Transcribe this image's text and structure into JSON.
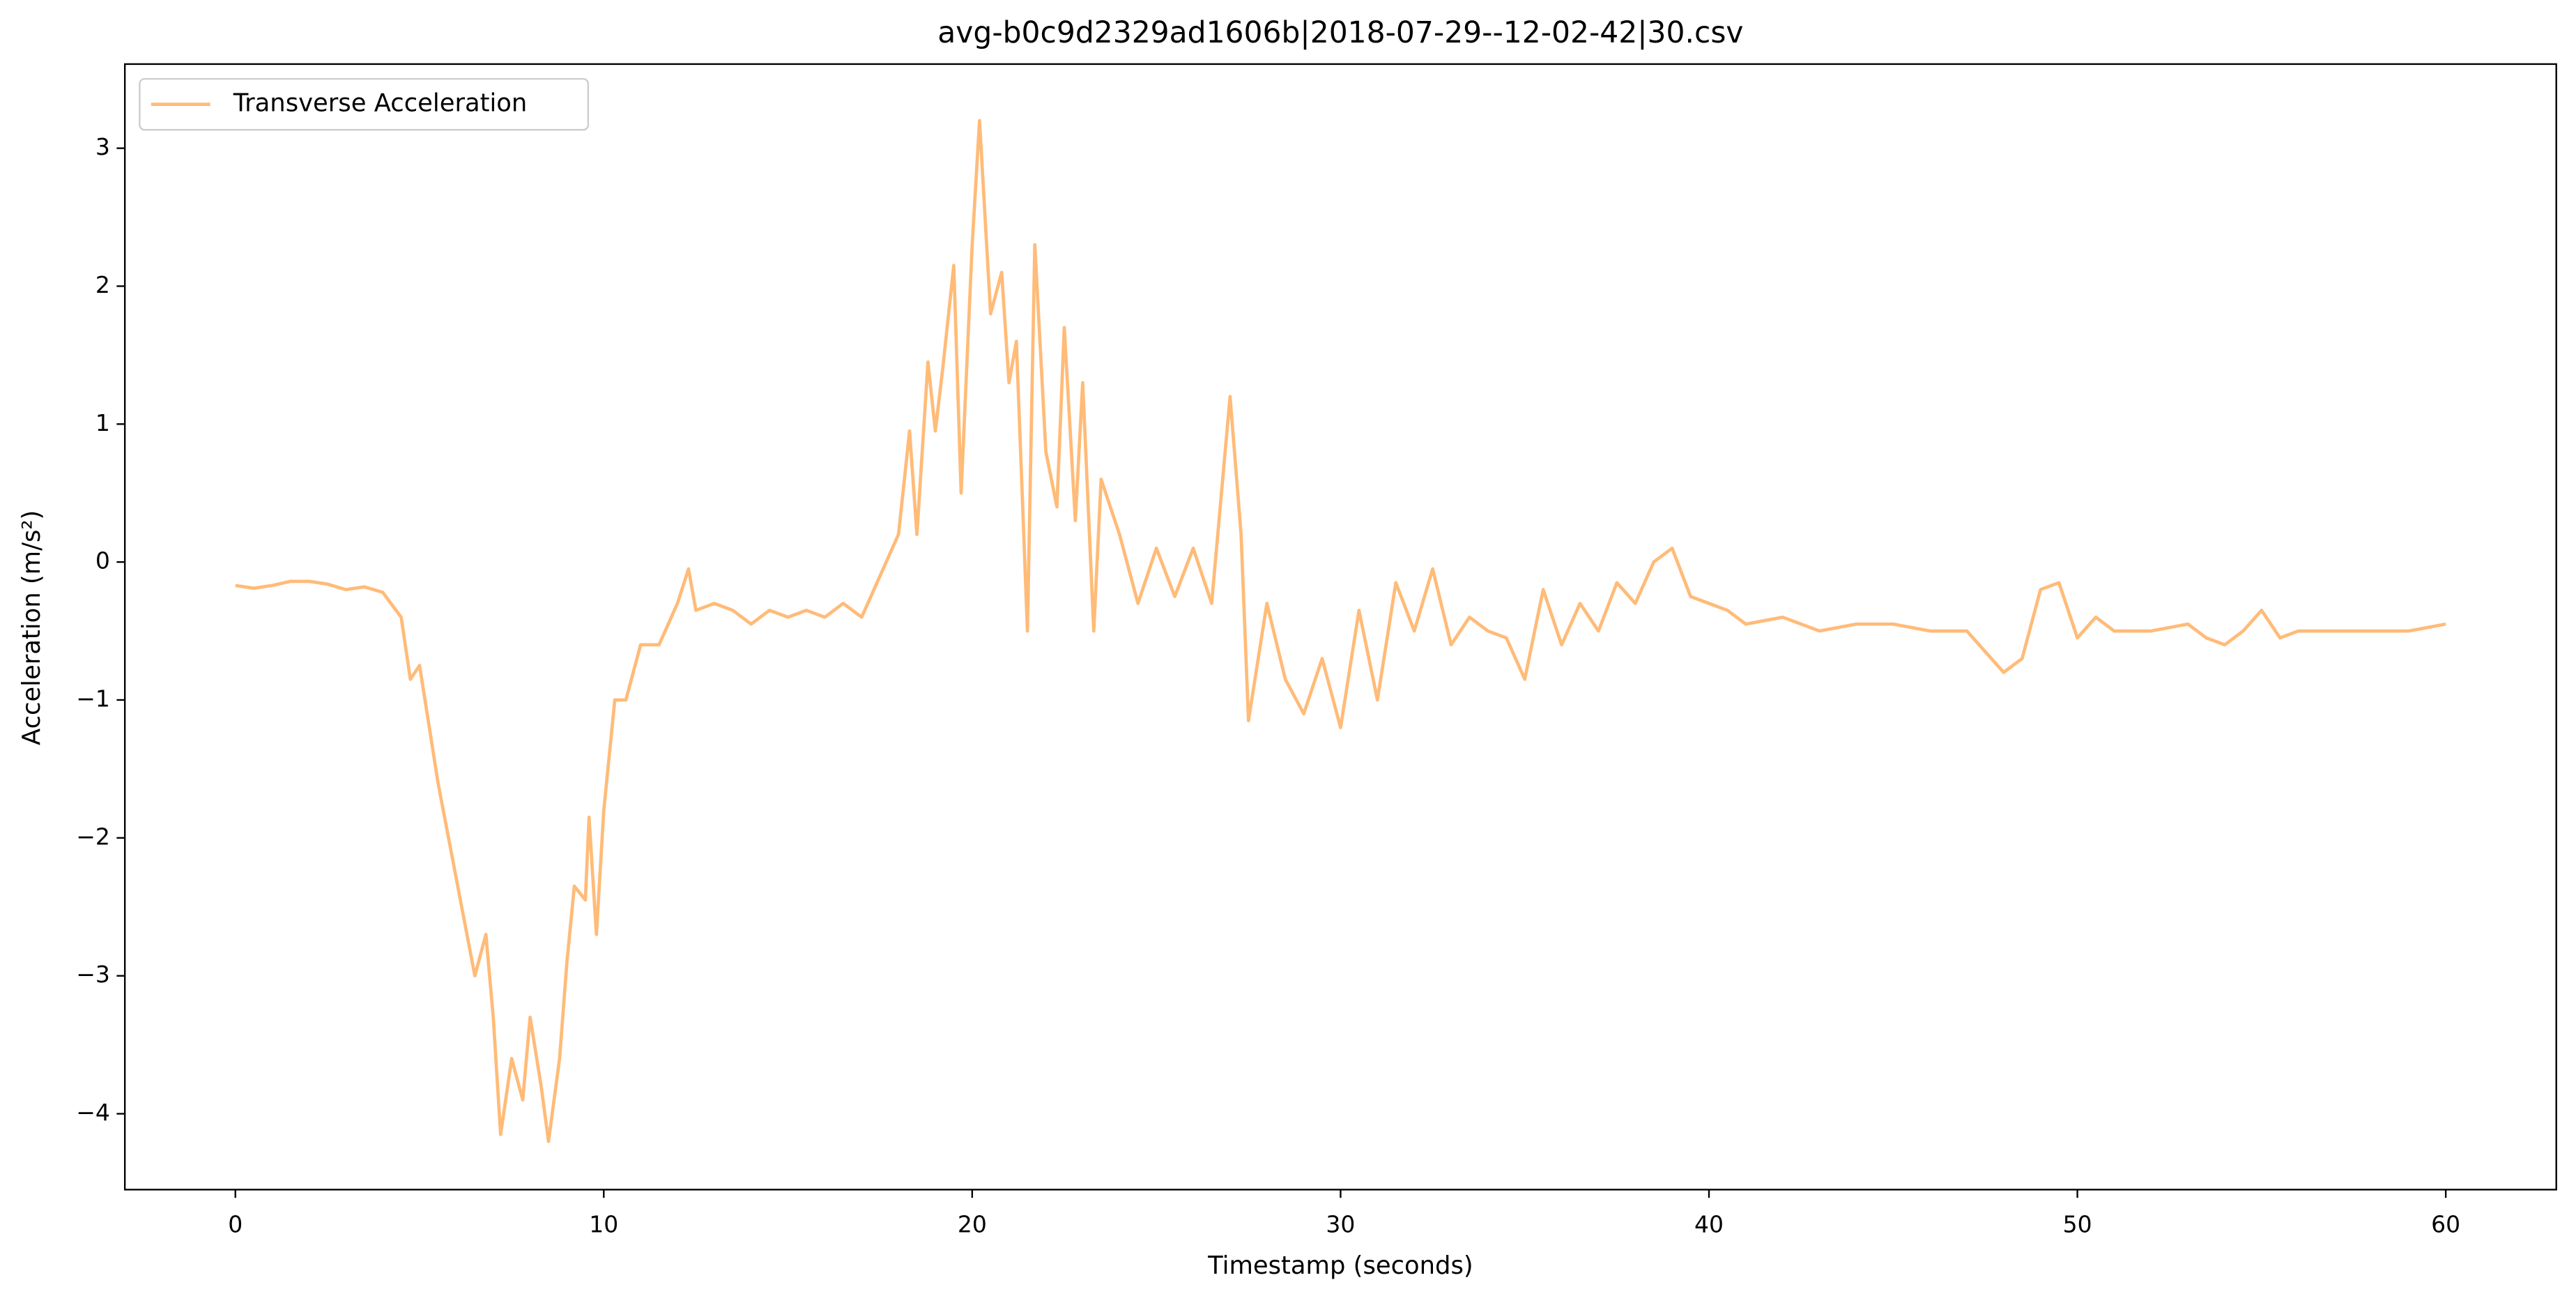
{
  "chart_data": {
    "type": "line",
    "title": "avg-b0c9d2329ad1606b|2018-07-29--12-02-42|30.csv",
    "x_label": "Timestamp (seconds)",
    "y_label": "Acceleration (m/s²)",
    "legend": "upper left",
    "x": [
      0,
      0.5,
      1,
      1.5,
      2,
      2.5,
      3,
      3.5,
      4,
      4.5,
      4.75,
      5,
      5.5,
      6,
      6.5,
      6.8,
      7,
      7.2,
      7.5,
      7.8,
      8,
      8.3,
      8.5,
      8.8,
      9,
      9.2,
      9.5,
      9.6,
      9.8,
      10,
      10.3,
      10.6,
      11,
      11.5,
      12,
      12.3,
      12.5,
      13,
      13.5,
      14,
      14.5,
      15,
      15.5,
      16,
      16.5,
      17,
      17.5,
      18,
      18.3,
      18.5,
      18.8,
      19,
      19.2,
      19.5,
      19.7,
      20,
      20.2,
      20.5,
      20.8,
      21,
      21.2,
      21.5,
      21.7,
      22,
      22.3,
      22.5,
      22.8,
      23,
      23.3,
      23.5,
      24,
      24.5,
      25,
      25.5,
      26,
      26.5,
      27,
      27.3,
      27.5,
      28,
      28.5,
      29,
      29.5,
      30,
      30.5,
      31,
      31.5,
      32,
      32.5,
      33,
      33.5,
      34,
      34.5,
      35,
      35.5,
      36,
      36.5,
      37,
      37.5,
      38,
      38.5,
      39,
      39.5,
      40,
      40.5,
      41,
      42,
      43,
      44,
      45,
      46,
      47,
      47.5,
      48,
      48.5,
      49,
      49.5,
      50,
      50.5,
      51,
      52,
      53,
      53.5,
      54,
      54.5,
      55,
      55.5,
      56,
      57,
      58,
      59,
      60
    ],
    "series": [
      {
        "name": "Transverse Acceleration",
        "color": "#ffbb78",
        "values": [
          -0.17,
          -0.19,
          -0.17,
          -0.14,
          -0.14,
          -0.16,
          -0.2,
          -0.18,
          -0.22,
          -0.4,
          -0.85,
          -0.75,
          -1.6,
          -2.3,
          -3.0,
          -2.7,
          -3.3,
          -4.15,
          -3.6,
          -3.9,
          -3.3,
          -3.8,
          -4.2,
          -3.6,
          -2.9,
          -2.35,
          -2.45,
          -1.85,
          -2.7,
          -1.8,
          -1.0,
          -1.0,
          -0.6,
          -0.6,
          -0.3,
          -0.05,
          -0.35,
          -0.3,
          -0.35,
          -0.45,
          -0.35,
          -0.4,
          -0.35,
          -0.4,
          -0.3,
          -0.4,
          -0.1,
          0.2,
          0.95,
          0.2,
          1.45,
          0.95,
          1.4,
          2.15,
          0.5,
          2.3,
          3.2,
          1.8,
          2.1,
          1.3,
          1.6,
          -0.5,
          2.3,
          0.8,
          0.4,
          1.7,
          0.3,
          1.3,
          -0.5,
          0.6,
          0.2,
          -0.3,
          0.1,
          -0.25,
          0.1,
          -0.3,
          1.2,
          0.2,
          -1.15,
          -0.3,
          -0.85,
          -1.1,
          -0.7,
          -1.2,
          -0.35,
          -1.0,
          -0.15,
          -0.5,
          -0.05,
          -0.6,
          -0.4,
          -0.5,
          -0.55,
          -0.85,
          -0.2,
          -0.6,
          -0.3,
          -0.5,
          -0.15,
          -0.3,
          0.0,
          0.1,
          -0.25,
          -0.3,
          -0.35,
          -0.45,
          -0.4,
          -0.5,
          -0.45,
          -0.45,
          -0.5,
          -0.5,
          -0.65,
          -0.8,
          -0.7,
          -0.2,
          -0.15,
          -0.55,
          -0.4,
          -0.5,
          -0.5,
          -0.45,
          -0.55,
          -0.6,
          -0.5,
          -0.35,
          -0.55,
          -0.5,
          -0.5,
          -0.5,
          -0.5,
          -0.45
        ]
      }
    ],
    "xlim": [
      -3,
      63
    ],
    "ylim": [
      -4.55,
      3.61
    ],
    "xticks": [
      0,
      10,
      20,
      30,
      40,
      50,
      60
    ],
    "yticks": [
      {
        "value": -4,
        "label": "−4"
      },
      {
        "value": -3,
        "label": "−3"
      },
      {
        "value": -2,
        "label": "−2"
      },
      {
        "value": -1,
        "label": "−1"
      },
      0,
      1,
      2,
      3
    ]
  }
}
